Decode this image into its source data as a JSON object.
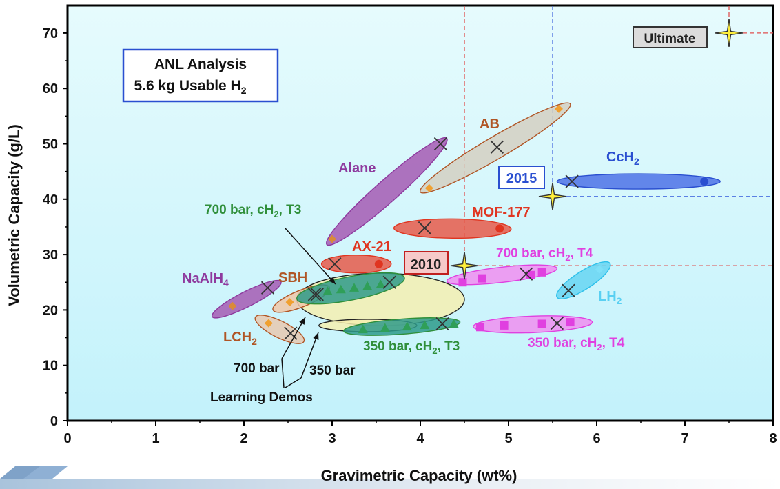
{
  "chart_data": {
    "type": "scatter",
    "xlabel": "Gravimetric Capacity (wt%)",
    "ylabel": "Volumetric Capacity (g/L)",
    "xlim": [
      0,
      8
    ],
    "ylim": [
      0,
      75
    ],
    "x_ticks": [
      "0",
      "1",
      "2",
      "3",
      "4",
      "5",
      "6",
      "7",
      "8"
    ],
    "y_ticks": [
      "0",
      "10",
      "20",
      "30",
      "40",
      "50",
      "60",
      "70"
    ],
    "info_box": {
      "line1": "ANL Analysis",
      "line2": "5.6 kg Usable H",
      "line2_sub": "2"
    },
    "targets": [
      {
        "label": "2010",
        "x": 4.5,
        "y": 28,
        "line_color": "#e05050",
        "box_fill": "#f6c9c9",
        "box_border": "#c02020",
        "text_color": "#222222"
      },
      {
        "label": "2015",
        "x": 5.5,
        "y": 40.5,
        "line_color": "#4a6fe0",
        "box_fill": "#ffffff",
        "box_border": "#2a4fd0",
        "text_color": "#2a4fd0"
      },
      {
        "label": "Ultimate",
        "x": 7.5,
        "y": 70,
        "line_color": "#e05050",
        "box_fill": "#dcdcdc",
        "box_border": "#333333",
        "text_color": "#222222"
      }
    ],
    "systems": [
      {
        "name": "Alane",
        "color": "#8e3a9e",
        "fill": "#a55bb3",
        "points": [
          [
            3.0,
            32.8
          ],
          [
            4.23,
            50
          ]
        ]
      },
      {
        "name": "AB",
        "color": "#b05525",
        "fill": "#d4d0c2",
        "points": [
          [
            4.1,
            42
          ],
          [
            4.87,
            49.4
          ],
          [
            5.57,
            56.3
          ]
        ]
      },
      {
        "name": "CcH2",
        "color": "#2a4fd0",
        "fill": "#4d72e6",
        "points": [
          [
            5.72,
            43.2
          ],
          [
            7.22,
            43.2
          ]
        ]
      },
      {
        "name": "MOF-177",
        "color": "#e03520",
        "fill": "#e65a4a",
        "points": [
          [
            4.05,
            34.8
          ],
          [
            4.9,
            34.7
          ]
        ]
      },
      {
        "name": "AX-21",
        "color": "#e03520",
        "fill": "#e65a4a",
        "points": [
          [
            3.03,
            28.3
          ],
          [
            3.53,
            28.3
          ]
        ]
      },
      {
        "name": "NaAlH4",
        "color": "#8e3a9e",
        "fill": "#a55bb3",
        "points": [
          [
            1.87,
            20.7
          ],
          [
            2.27,
            24
          ]
        ]
      },
      {
        "name": "SBH",
        "color": "#b05525",
        "fill": "#f0c7a8",
        "points": [
          [
            2.52,
            21.4
          ],
          [
            2.8,
            22.8
          ]
        ]
      },
      {
        "name": "LCH2",
        "color": "#b05525",
        "fill": "#e8c8b0",
        "points": [
          [
            2.28,
            17.6
          ],
          [
            2.53,
            15.8
          ]
        ]
      },
      {
        "name": "LH2",
        "color": "#2ec0ea",
        "fill": "#66d5f2",
        "points": [
          [
            5.68,
            23.5
          ],
          [
            6.03,
            27.3
          ]
        ]
      },
      {
        "name": "700 bar, cH2, T3",
        "color": "#2f8f3a",
        "fill": "#2e9a8a",
        "points": [
          [
            2.83,
            22.8
          ],
          [
            3.3,
            23.8
          ],
          [
            3.65,
            25
          ]
        ]
      },
      {
        "name": "350 bar, cH2, T3",
        "color": "#2f8f3a",
        "fill": "#2e9a8a",
        "points": [
          [
            3.35,
            16.5
          ],
          [
            3.85,
            17
          ],
          [
            4.25,
            17.5
          ]
        ]
      },
      {
        "name": "700 bar, cH2, T4",
        "color": "#e040e0",
        "fill": "#f08ef0",
        "points": [
          [
            4.5,
            25
          ],
          [
            5.2,
            26.5
          ],
          [
            5.4,
            26.8
          ]
        ]
      },
      {
        "name": "350 bar, cH2, T4",
        "color": "#e040e0",
        "fill": "#f08ef0",
        "points": [
          [
            4.7,
            16.9
          ],
          [
            5.38,
            17.5
          ],
          [
            5.72,
            17.8
          ]
        ]
      },
      {
        "name": "Learning Demos 700 bar",
        "color": "#222222",
        "fill": "#f5eeb0",
        "points": []
      },
      {
        "name": "Learning Demos 350 bar",
        "color": "#222222",
        "fill": "#f5eeb0",
        "points": []
      }
    ],
    "annotations": [
      "Alane",
      "AB",
      "CcH",
      "MOF-177",
      "AX-21",
      "NaAlH",
      "SBH",
      "LCH",
      "LH",
      "700 bar, cH",
      "700 bar, cH",
      "350 bar, cH",
      "350 bar, cH",
      "700 bar",
      "350 bar",
      "Learning Demos"
    ]
  }
}
